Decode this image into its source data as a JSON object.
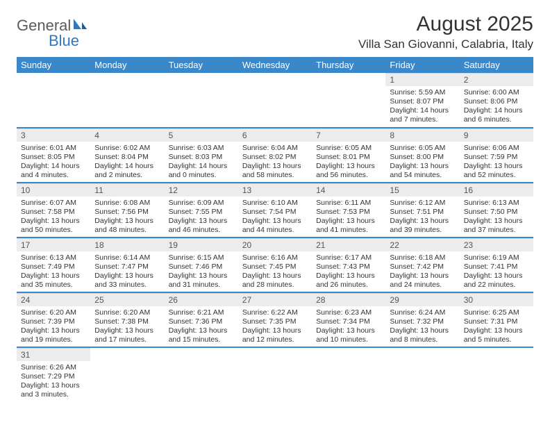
{
  "logo": {
    "textA": "General",
    "textB": "Blue"
  },
  "title": "August 2025",
  "location": "Villa San Giovanni, Calabria, Italy",
  "colors": {
    "header_bg": "#3a87c9",
    "header_text": "#ffffff",
    "daynum_bg": "#ececec",
    "rule": "#3a87c9",
    "logo_gray": "#5a5a5a",
    "logo_blue": "#2e78c2"
  },
  "dayNames": [
    "Sunday",
    "Monday",
    "Tuesday",
    "Wednesday",
    "Thursday",
    "Friday",
    "Saturday"
  ],
  "startDayIndex": 5,
  "daysInMonth": 31,
  "days": {
    "1": {
      "sunrise": "5:59 AM",
      "sunset": "8:07 PM",
      "dlh": 14,
      "dlm": 7
    },
    "2": {
      "sunrise": "6:00 AM",
      "sunset": "8:06 PM",
      "dlh": 14,
      "dlm": 6
    },
    "3": {
      "sunrise": "6:01 AM",
      "sunset": "8:05 PM",
      "dlh": 14,
      "dlm": 4
    },
    "4": {
      "sunrise": "6:02 AM",
      "sunset": "8:04 PM",
      "dlh": 14,
      "dlm": 2
    },
    "5": {
      "sunrise": "6:03 AM",
      "sunset": "8:03 PM",
      "dlh": 14,
      "dlm": 0
    },
    "6": {
      "sunrise": "6:04 AM",
      "sunset": "8:02 PM",
      "dlh": 13,
      "dlm": 58
    },
    "7": {
      "sunrise": "6:05 AM",
      "sunset": "8:01 PM",
      "dlh": 13,
      "dlm": 56
    },
    "8": {
      "sunrise": "6:05 AM",
      "sunset": "8:00 PM",
      "dlh": 13,
      "dlm": 54
    },
    "9": {
      "sunrise": "6:06 AM",
      "sunset": "7:59 PM",
      "dlh": 13,
      "dlm": 52
    },
    "10": {
      "sunrise": "6:07 AM",
      "sunset": "7:58 PM",
      "dlh": 13,
      "dlm": 50
    },
    "11": {
      "sunrise": "6:08 AM",
      "sunset": "7:56 PM",
      "dlh": 13,
      "dlm": 48
    },
    "12": {
      "sunrise": "6:09 AM",
      "sunset": "7:55 PM",
      "dlh": 13,
      "dlm": 46
    },
    "13": {
      "sunrise": "6:10 AM",
      "sunset": "7:54 PM",
      "dlh": 13,
      "dlm": 44
    },
    "14": {
      "sunrise": "6:11 AM",
      "sunset": "7:53 PM",
      "dlh": 13,
      "dlm": 41
    },
    "15": {
      "sunrise": "6:12 AM",
      "sunset": "7:51 PM",
      "dlh": 13,
      "dlm": 39
    },
    "16": {
      "sunrise": "6:13 AM",
      "sunset": "7:50 PM",
      "dlh": 13,
      "dlm": 37
    },
    "17": {
      "sunrise": "6:13 AM",
      "sunset": "7:49 PM",
      "dlh": 13,
      "dlm": 35
    },
    "18": {
      "sunrise": "6:14 AM",
      "sunset": "7:47 PM",
      "dlh": 13,
      "dlm": 33
    },
    "19": {
      "sunrise": "6:15 AM",
      "sunset": "7:46 PM",
      "dlh": 13,
      "dlm": 31
    },
    "20": {
      "sunrise": "6:16 AM",
      "sunset": "7:45 PM",
      "dlh": 13,
      "dlm": 28
    },
    "21": {
      "sunrise": "6:17 AM",
      "sunset": "7:43 PM",
      "dlh": 13,
      "dlm": 26
    },
    "22": {
      "sunrise": "6:18 AM",
      "sunset": "7:42 PM",
      "dlh": 13,
      "dlm": 24
    },
    "23": {
      "sunrise": "6:19 AM",
      "sunset": "7:41 PM",
      "dlh": 13,
      "dlm": 22
    },
    "24": {
      "sunrise": "6:20 AM",
      "sunset": "7:39 PM",
      "dlh": 13,
      "dlm": 19
    },
    "25": {
      "sunrise": "6:20 AM",
      "sunset": "7:38 PM",
      "dlh": 13,
      "dlm": 17
    },
    "26": {
      "sunrise": "6:21 AM",
      "sunset": "7:36 PM",
      "dlh": 13,
      "dlm": 15
    },
    "27": {
      "sunrise": "6:22 AM",
      "sunset": "7:35 PM",
      "dlh": 13,
      "dlm": 12
    },
    "28": {
      "sunrise": "6:23 AM",
      "sunset": "7:34 PM",
      "dlh": 13,
      "dlm": 10
    },
    "29": {
      "sunrise": "6:24 AM",
      "sunset": "7:32 PM",
      "dlh": 13,
      "dlm": 8
    },
    "30": {
      "sunrise": "6:25 AM",
      "sunset": "7:31 PM",
      "dlh": 13,
      "dlm": 5
    },
    "31": {
      "sunrise": "6:26 AM",
      "sunset": "7:29 PM",
      "dlh": 13,
      "dlm": 3
    }
  },
  "labels": {
    "sunrise": "Sunrise:",
    "sunset": "Sunset:",
    "daylight": "Daylight:",
    "hours": "hours",
    "and": "and",
    "minutes": "minutes."
  }
}
